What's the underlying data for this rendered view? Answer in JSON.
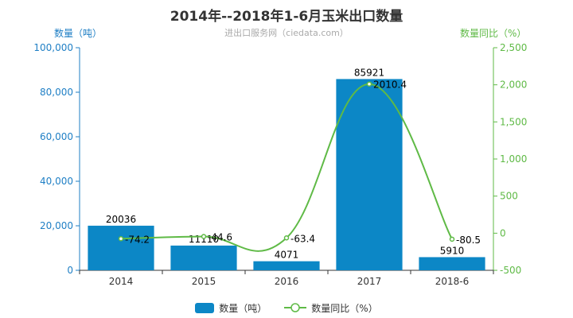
{
  "colors": {
    "bar": "#0c87c6",
    "line": "#5fba46",
    "left_axis": "#1f7fc5",
    "right_axis": "#5fba46",
    "text": "#333333",
    "subtitle": "#aaaaaa"
  },
  "chart_data": {
    "type": "bar",
    "title": "2014年--2018年1-6月玉米出口数量",
    "subtitle": "进出口服务网（ciedata.com）",
    "categories": [
      "2014",
      "2015",
      "2016",
      "2017",
      "2018-6"
    ],
    "series": [
      {
        "name": "数量（吨）",
        "type": "bar",
        "axis": "left",
        "values": [
          20036,
          11110,
          4071,
          85921,
          5910
        ],
        "labels": [
          "20036",
          "11110",
          "4071",
          "85921",
          "5910"
        ]
      },
      {
        "name": "数量同比（%）",
        "type": "line",
        "axis": "right",
        "values": [
          -74.2,
          -44.6,
          -63.4,
          2010.4,
          -80.5
        ],
        "labels": [
          "-74.2",
          "-44.6",
          "-63.4",
          "2010.4",
          "-80.5"
        ]
      }
    ],
    "ylabel_left": "数量（吨）",
    "ylabel_right": "数量同比（%）",
    "ylim_left": [
      0,
      100000
    ],
    "ylim_right": [
      -500,
      2500
    ],
    "yticks_left": [
      "0",
      "20,000",
      "40,000",
      "60,000",
      "80,000",
      "100,000"
    ],
    "yticks_right": [
      "-500",
      "0",
      "500",
      "1,000",
      "1,500",
      "2,000",
      "2,500"
    ],
    "grid": false,
    "legend_position": "bottom"
  }
}
